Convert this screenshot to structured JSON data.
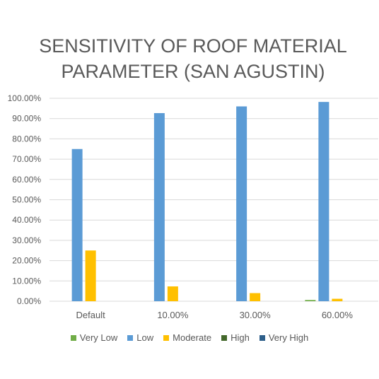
{
  "chart_data": {
    "type": "bar",
    "title_line1": "SENSITIVITY OF ROOF MATERIAL",
    "title_line2": "PARAMETER (SAN AGUSTIN)",
    "xlabel": "",
    "ylabel": "",
    "categories": [
      "Default",
      "10.00%",
      "30.00%",
      "60.00%"
    ],
    "y_ticks": [
      "0.00%",
      "10.00%",
      "20.00%",
      "30.00%",
      "40.00%",
      "50.00%",
      "60.00%",
      "70.00%",
      "80.00%",
      "90.00%",
      "100.00%"
    ],
    "ylim": [
      0,
      100
    ],
    "grid": true,
    "legend_position": "bottom",
    "series": [
      {
        "name": "Very Low",
        "color": "#70ad47",
        "values": [
          0,
          0,
          0,
          0.6
        ]
      },
      {
        "name": "Low",
        "color": "#5b9bd5",
        "values": [
          75,
          92.7,
          96,
          98.2
        ]
      },
      {
        "name": "Moderate",
        "color": "#ffc000",
        "values": [
          25,
          7.3,
          4,
          1.2
        ]
      },
      {
        "name": "High",
        "color": "#43682b",
        "values": [
          0,
          0,
          0,
          0
        ]
      },
      {
        "name": "Very High",
        "color": "#2e5f8a",
        "values": [
          0,
          0,
          0,
          0
        ]
      }
    ]
  }
}
